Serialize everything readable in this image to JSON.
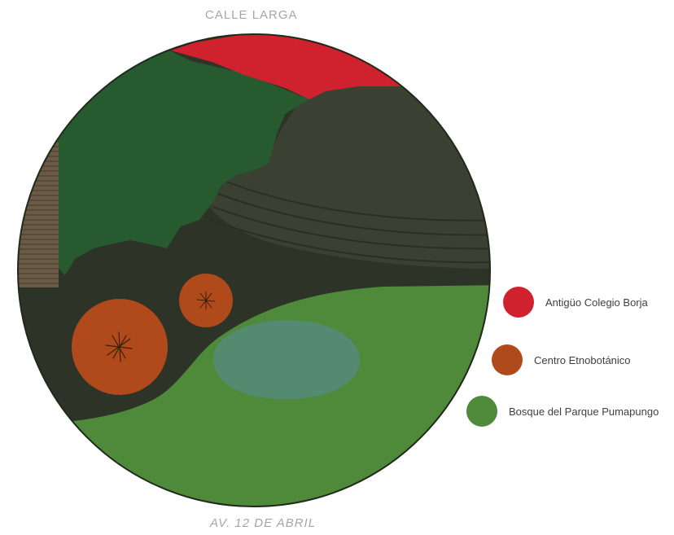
{
  "streets": {
    "top": "CALLE LARGA",
    "bottom": "AV. 12 DE ABRIL"
  },
  "legend": [
    {
      "label": "Antigüo Colegio Borja",
      "color": "#d0222e",
      "key": "antiguo-colegio-borja"
    },
    {
      "label": "Centro Etnobotánico",
      "color": "#b14a1b",
      "key": "centro-etnobotanico"
    },
    {
      "label": "Bosque del Parque Pumapungo",
      "color": "#4e8a3a",
      "key": "bosque-parque-pumapungo"
    }
  ],
  "colors": {
    "dark_ground": "#2d3327",
    "forest_dark": "#285a2f",
    "terraces": "#3b4132",
    "park_green": "#4e8a3a",
    "pond": "#55897a",
    "stairs": "#6b5a45",
    "red_area": "#d0222e",
    "orange_circles": "#b14a1b"
  },
  "icons": {
    "plant_marker": "asterisk-icon"
  }
}
